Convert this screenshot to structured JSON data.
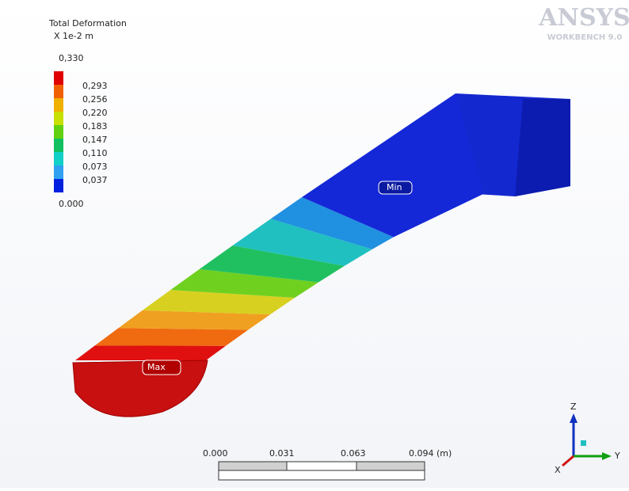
{
  "legend": {
    "title": "Total Deformation",
    "unit": "X 1e-2 m",
    "labels": [
      "0,330",
      "0,293",
      "0,256",
      "0,220",
      "0,183",
      "0,147",
      "0,110",
      "0,073",
      "0,037",
      "0.000"
    ]
  },
  "logo": {
    "name": "ANSYS",
    "version": "WORKBENCH 9.0"
  },
  "probes": {
    "min": "Min",
    "max": "Max"
  },
  "scale_bar": {
    "labels": [
      "0.000",
      "0.031",
      "0.063",
      "0.094 (m)"
    ]
  },
  "triad": {
    "z": "Z",
    "y": "Y",
    "x": "X"
  }
}
